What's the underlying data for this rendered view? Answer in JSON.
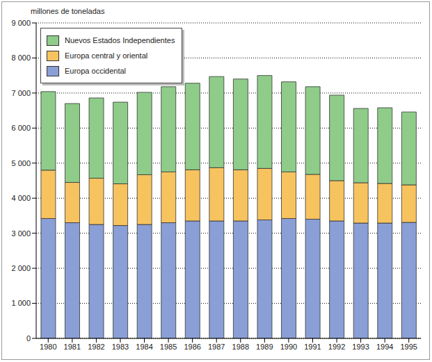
{
  "chart_data": {
    "type": "bar",
    "stacked": true,
    "y_label": "millones de toneladas",
    "categories": [
      "1980",
      "1981",
      "1982",
      "1983",
      "1984",
      "1985",
      "1986",
      "1987",
      "1988",
      "1989",
      "1990",
      "1991",
      "1992",
      "1993",
      "1994",
      "1995"
    ],
    "series": [
      {
        "name": "Europa occidental",
        "color": "#8a9fd6",
        "values": [
          3420,
          3300,
          3250,
          3220,
          3250,
          3300,
          3350,
          3350,
          3350,
          3380,
          3420,
          3400,
          3350,
          3290,
          3290,
          3310
        ]
      },
      {
        "name": "Europa central y oriental",
        "color": "#f7c35f",
        "values": [
          1380,
          1150,
          1320,
          1190,
          1420,
          1450,
          1460,
          1520,
          1460,
          1470,
          1330,
          1280,
          1150,
          1150,
          1130,
          1070
        ]
      },
      {
        "name": "Nuevos Estados Independientes",
        "color": "#8fcc8a",
        "values": [
          2240,
          2250,
          2290,
          2330,
          2350,
          2430,
          2470,
          2600,
          2590,
          2650,
          2570,
          2500,
          2440,
          2120,
          2160,
          2080
        ]
      }
    ],
    "ylim": [
      0,
      9000
    ],
    "yticks": [
      0,
      {
        "value": 1000,
        "label": "1 000"
      },
      {
        "value": 2000,
        "label": "2 000"
      },
      {
        "value": 3000,
        "label": "3 000"
      },
      {
        "value": 4000,
        "label": "4 000"
      },
      {
        "value": 5000,
        "label": "5 000"
      },
      {
        "value": 6000,
        "label": "6 000"
      },
      {
        "value": 7000,
        "label": "7 000"
      },
      {
        "value": 8000,
        "label": "8 000"
      },
      {
        "value": 9000,
        "label": "9 000"
      }
    ],
    "grid": true,
    "legend": "top-left"
  }
}
